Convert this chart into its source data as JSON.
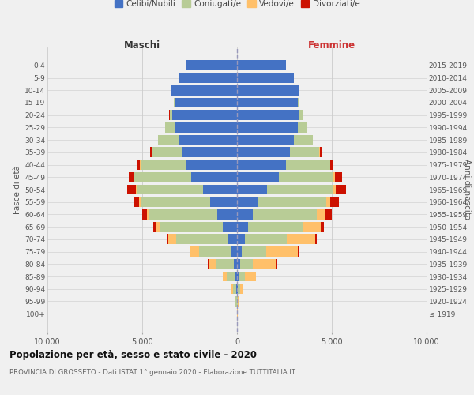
{
  "age_groups": [
    "100+",
    "95-99",
    "90-94",
    "85-89",
    "80-84",
    "75-79",
    "70-74",
    "65-69",
    "60-64",
    "55-59",
    "50-54",
    "45-49",
    "40-44",
    "35-39",
    "30-34",
    "25-29",
    "20-24",
    "15-19",
    "10-14",
    "5-9",
    "0-4"
  ],
  "birth_years": [
    "≤ 1919",
    "1920-1924",
    "1925-1929",
    "1930-1934",
    "1935-1939",
    "1940-1944",
    "1945-1949",
    "1950-1954",
    "1955-1959",
    "1960-1964",
    "1965-1969",
    "1970-1974",
    "1975-1979",
    "1980-1984",
    "1985-1989",
    "1990-1994",
    "1995-1999",
    "2000-2004",
    "2005-2009",
    "2010-2014",
    "2015-2019"
  ],
  "male": {
    "celibi": [
      5,
      15,
      40,
      80,
      150,
      280,
      500,
      750,
      1050,
      1400,
      1800,
      2400,
      2700,
      2900,
      3100,
      3300,
      3400,
      3300,
      3450,
      3100,
      2700
    ],
    "coniugati": [
      10,
      50,
      180,
      450,
      950,
      1700,
      2700,
      3300,
      3600,
      3700,
      3500,
      3000,
      2400,
      1600,
      1050,
      500,
      160,
      40,
      8,
      3,
      1
    ],
    "vedovi": [
      3,
      15,
      60,
      200,
      420,
      500,
      420,
      250,
      120,
      60,
      35,
      20,
      12,
      7,
      3,
      2,
      1,
      0,
      0,
      0,
      0
    ],
    "divorziati": [
      1,
      3,
      8,
      15,
      25,
      40,
      90,
      130,
      220,
      310,
      450,
      270,
      130,
      65,
      25,
      8,
      4,
      1,
      0,
      0,
      0
    ]
  },
  "female": {
    "nubili": [
      5,
      15,
      40,
      80,
      150,
      250,
      420,
      600,
      820,
      1100,
      1600,
      2200,
      2600,
      2800,
      3000,
      3200,
      3300,
      3200,
      3300,
      3000,
      2600
    ],
    "coniugate": [
      8,
      35,
      130,
      320,
      700,
      1300,
      2200,
      2900,
      3400,
      3600,
      3500,
      2900,
      2300,
      1550,
      980,
      480,
      155,
      35,
      7,
      2,
      1
    ],
    "vedove": [
      8,
      40,
      160,
      600,
      1250,
      1650,
      1500,
      920,
      450,
      210,
      100,
      50,
      22,
      10,
      6,
      3,
      1,
      0,
      0,
      0,
      0
    ],
    "divorziate": [
      1,
      3,
      8,
      15,
      30,
      50,
      100,
      170,
      310,
      450,
      550,
      400,
      170,
      85,
      32,
      12,
      4,
      1,
      0,
      0,
      0
    ]
  },
  "colors": {
    "celibi": "#4472c4",
    "coniugati": "#b8cc96",
    "vedovi": "#ffc06a",
    "divorziati": "#cc1100"
  },
  "legend_labels": [
    "Celibi/Nubili",
    "Coniugati/e",
    "Vedovi/e",
    "Divorziati/e"
  ],
  "title": "Popolazione per età, sesso e stato civile - 2020",
  "subtitle": "PROVINCIA DI GROSSETO - Dati ISTAT 1° gennaio 2020 - Elaborazione TUTTITALIA.IT",
  "xlabel_left": "Maschi",
  "xlabel_right": "Femmine",
  "ylabel_left": "Fasce di età",
  "ylabel_right": "Anni di nascita",
  "xlim": 10000,
  "xticks": [
    -10000,
    -5000,
    0,
    5000,
    10000
  ],
  "xticklabels": [
    "10.000",
    "5.000",
    "0",
    "5.000",
    "10.000"
  ],
  "background_color": "#f0f0f0"
}
